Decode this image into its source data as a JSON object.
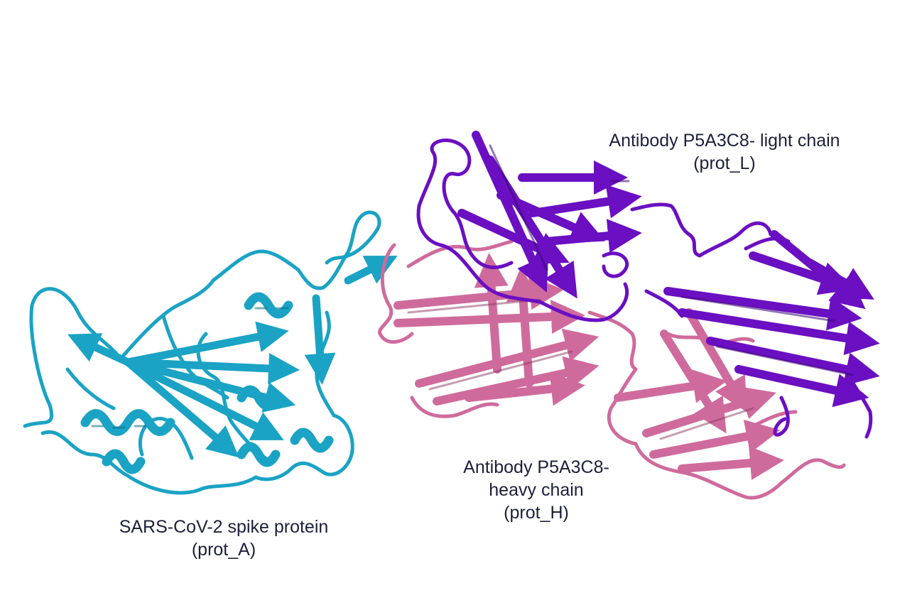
{
  "colors": {
    "background": "#ffffff",
    "label_text": "#1d1f3a",
    "spike": "#1aa3c4",
    "spike_dark": "#0b6f87",
    "heavy": "#cf6b9c",
    "heavy_dark": "#8e3a63",
    "light": "#6a0fc1",
    "light_dark": "#3c0778"
  },
  "chains": {
    "light": {
      "line1": "Antibody P5A3C8- light chain",
      "line2": "(prot_L)",
      "color": "#6a0fc1"
    },
    "heavy": {
      "line1": "Antibody P5A3C8-",
      "line2": "heavy chain",
      "line3": "(prot_H)",
      "color": "#cf6b9c"
    },
    "spike": {
      "line1": "SARS-CoV-2 spike protein",
      "line2": "(prot_A)",
      "color": "#1aa3c4"
    }
  }
}
